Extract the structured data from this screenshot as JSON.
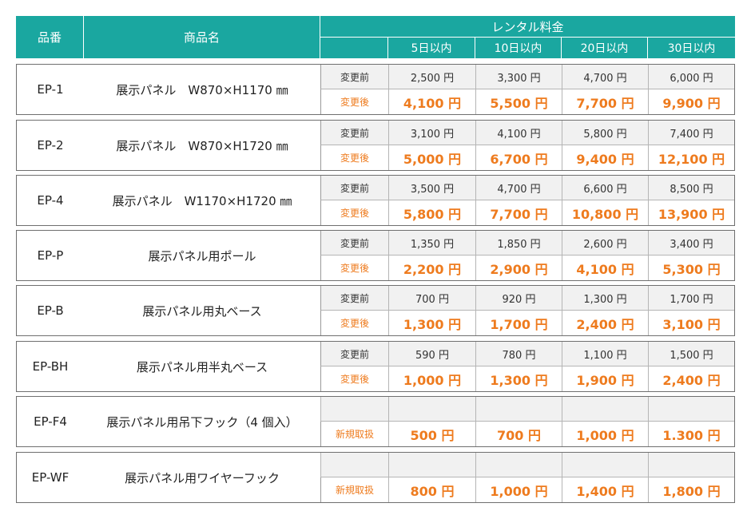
{
  "header": {
    "code": "品番",
    "name": "商品名",
    "rental": "レンタル料金",
    "periods": [
      "5日以内",
      "10日以内",
      "20日以内",
      "30日以内"
    ]
  },
  "colors": {
    "header_bg": "#1aa7a0",
    "accent": "#ee7b1e",
    "shaded": "#f1f1f1"
  },
  "rows": [
    {
      "code": "EP-1",
      "name": "展示パネル　W870×H1170 ㎜",
      "before_label": "変更前",
      "after_label": "変更後",
      "before": [
        "2,500 円",
        "3,300 円",
        "4,700 円",
        "6,000 円"
      ],
      "after": [
        "4,100 円",
        "5,500 円",
        "7,700 円",
        "9,900 円"
      ]
    },
    {
      "code": "EP-2",
      "name": "展示パネル　W870×H1720 ㎜",
      "before_label": "変更前",
      "after_label": "変更後",
      "before": [
        "3,100 円",
        "4,100 円",
        "5,800 円",
        "7,400 円"
      ],
      "after": [
        "5,000 円",
        "6,700 円",
        "9,400 円",
        "12,100 円"
      ]
    },
    {
      "code": "EP-4",
      "name": "展示パネル　W1170×H1720 ㎜",
      "before_label": "変更前",
      "after_label": "変更後",
      "before": [
        "3,500 円",
        "4,700 円",
        "6,600 円",
        "8,500 円"
      ],
      "after": [
        "5,800 円",
        "7,700 円",
        "10,800 円",
        "13,900 円"
      ]
    },
    {
      "code": "EP-P",
      "name": "展示パネル用ポール",
      "before_label": "変更前",
      "after_label": "変更後",
      "before": [
        "1,350 円",
        "1,850 円",
        "2,600 円",
        "3,400 円"
      ],
      "after": [
        "2,200 円",
        "2,900 円",
        "4,100 円",
        "5,300 円"
      ]
    },
    {
      "code": "EP-B",
      "name": "展示パネル用丸ベース",
      "before_label": "変更前",
      "after_label": "変更後",
      "before": [
        "700 円",
        "920 円",
        "1,300 円",
        "1,700 円"
      ],
      "after": [
        "1,300 円",
        "1,700 円",
        "2,400 円",
        "3,100 円"
      ]
    },
    {
      "code": "EP-BH",
      "name": "展示パネル用半丸ベース",
      "before_label": "変更前",
      "after_label": "変更後",
      "before": [
        "590 円",
        "780 円",
        "1,100 円",
        "1,500 円"
      ],
      "after": [
        "1,000 円",
        "1,300 円",
        "1,900 円",
        "2,400 円"
      ]
    },
    {
      "code": "EP-F4",
      "name": "展示パネル用吊下フック（4 個入）",
      "before_label": "",
      "after_label": "新規取扱",
      "before": [],
      "after": [
        "500 円",
        "700 円",
        "1,000 円",
        "1.300 円"
      ]
    },
    {
      "code": "EP-WF",
      "name": "展示パネル用ワイヤーフック",
      "before_label": "",
      "after_label": "新規取扱",
      "before": [],
      "after": [
        "800 円",
        "1,000 円",
        "1,400 円",
        "1,800 円"
      ]
    }
  ]
}
